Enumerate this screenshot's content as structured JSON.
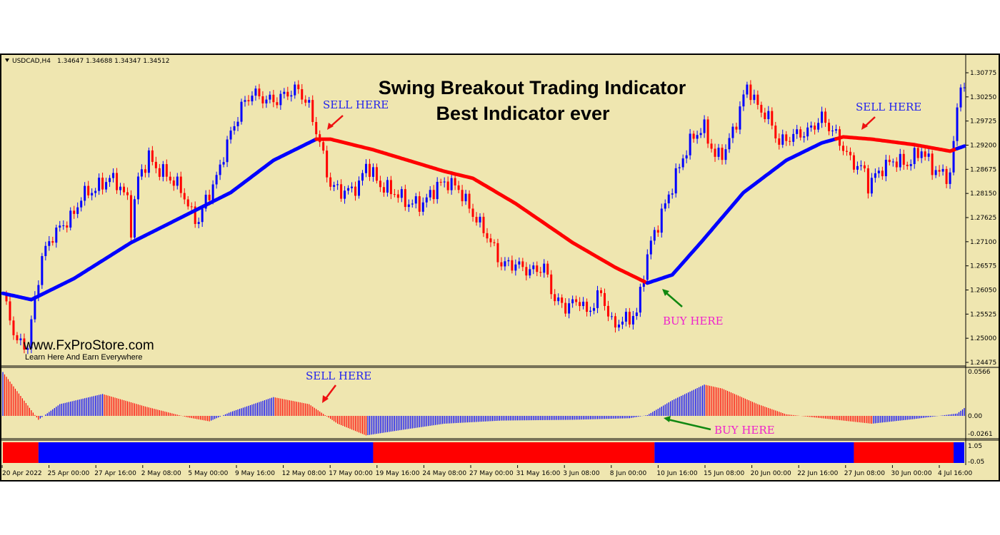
{
  "header": {
    "symbol": "USDCAD,H4",
    "ohlc": "1.34647 1.34688 1.34347 1.34512"
  },
  "title_lines": [
    "Swing Breakout Trading Indicator",
    "Best Indicator ever"
  ],
  "watermark": {
    "site": "www.FxProStore.com",
    "tagline": "Learn Here And Earn Everywhere"
  },
  "annotations": {
    "sell_1": "SELL HERE",
    "sell_2": "SELL HERE",
    "sell_3": "SELL HERE",
    "buy_1": "BUY HERE",
    "buy_2": "BUY HERE"
  },
  "colors": {
    "background": "#efe6b0",
    "bull": "#0000ff",
    "bear": "#ff0000",
    "sell_text": "#2222ee",
    "buy_text": "#ee22cc",
    "sell_arrow": "#ee1111",
    "buy_arrow": "#118811"
  },
  "chart_data": [
    {
      "type": "candlestick",
      "price_axis_ticks": [
        "1.30775",
        "1.30250",
        "1.29725",
        "1.29200",
        "1.28675",
        "1.28150",
        "1.27625",
        "1.27100",
        "1.26575",
        "1.26050",
        "1.25525",
        "1.25000",
        "1.24475"
      ],
      "ylim": [
        1.24475,
        1.30775
      ],
      "time_ticks": [
        "20 Apr 2022",
        "25 Apr 00:00",
        "27 Apr 16:00",
        "2 May 08:00",
        "5 May 00:00",
        "9 May 16:00",
        "12 May 08:00",
        "17 May 00:00",
        "19 May 16:00",
        "24 May 08:00",
        "27 May 00:00",
        "31 May 16:00",
        "3 Jun 08:00",
        "8 Jun 00:00",
        "10 Jun 16:00",
        "15 Jun 08:00",
        "20 Jun 00:00",
        "22 Jun 16:00",
        "27 Jun 08:00",
        "30 Jun 00:00",
        "4 Jul 16:00"
      ],
      "close_path": [
        [
          1,
          1.2568
        ],
        [
          4,
          1.2491
        ],
        [
          7,
          1.2483
        ],
        [
          9,
          1.2584
        ],
        [
          11,
          1.2677
        ],
        [
          14,
          1.2724
        ],
        [
          18,
          1.2755
        ],
        [
          20,
          1.277
        ],
        [
          22,
          1.2809
        ],
        [
          26,
          1.2825
        ],
        [
          30,
          1.2848
        ],
        [
          32,
          1.284
        ],
        [
          35,
          1.2801
        ],
        [
          36,
          1.2739
        ],
        [
          38,
          1.2848
        ],
        [
          41,
          1.2894
        ],
        [
          43,
          1.2871
        ],
        [
          46,
          1.2855
        ],
        [
          50,
          1.2825
        ],
        [
          53,
          1.277
        ],
        [
          55,
          1.2755
        ],
        [
          57,
          1.2801
        ],
        [
          60,
          1.2848
        ],
        [
          63,
          1.2925
        ],
        [
          67,
          1.3003
        ],
        [
          70,
          1.3034
        ],
        [
          74,
          1.3018
        ],
        [
          77,
          1.3018
        ],
        [
          80,
          1.3034
        ],
        [
          83,
          1.3041
        ],
        [
          86,
          1.3003
        ],
        [
          89,
          1.2925
        ],
        [
          92,
          1.2832
        ],
        [
          96,
          1.2817
        ],
        [
          100,
          1.2832
        ],
        [
          102,
          1.2879
        ],
        [
          106,
          1.2832
        ],
        [
          110,
          1.2817
        ],
        [
          114,
          1.2793
        ],
        [
          118,
          1.2793
        ],
        [
          122,
          1.2832
        ],
        [
          125,
          1.284
        ],
        [
          128,
          1.2825
        ],
        [
          132,
          1.277
        ],
        [
          136,
          1.2724
        ],
        [
          140,
          1.2661
        ],
        [
          144,
          1.2661
        ],
        [
          148,
          1.2646
        ],
        [
          152,
          1.2654
        ],
        [
          155,
          1.2584
        ],
        [
          158,
          1.2568
        ],
        [
          162,
          1.2584
        ],
        [
          164,
          1.2553
        ],
        [
          168,
          1.26
        ],
        [
          171,
          1.253
        ],
        [
          174,
          1.2537
        ],
        [
          178,
          1.2553
        ],
        [
          180,
          1.2646
        ],
        [
          182,
          1.2708
        ],
        [
          185,
          1.277
        ],
        [
          188,
          1.2832
        ],
        [
          191,
          1.2894
        ],
        [
          194,
          1.2941
        ],
        [
          197,
          1.2957
        ],
        [
          200,
          1.2894
        ],
        [
          203,
          1.291
        ],
        [
          206,
          1.2972
        ],
        [
          209,
          1.305
        ],
        [
          212,
          1.3003
        ],
        [
          215,
          1.298
        ],
        [
          218,
          1.2925
        ],
        [
          222,
          1.2941
        ],
        [
          226,
          1.2949
        ],
        [
          230,
          1.298
        ],
        [
          234,
          1.2941
        ],
        [
          238,
          1.2887
        ],
        [
          242,
          1.2863
        ],
        [
          243,
          1.2832
        ],
        [
          246,
          1.2863
        ],
        [
          250,
          1.2887
        ],
        [
          254,
          1.2879
        ],
        [
          258,
          1.291
        ],
        [
          261,
          1.2871
        ],
        [
          264,
          1.2855
        ],
        [
          266,
          1.2855
        ],
        [
          268,
          1.2995
        ],
        [
          269,
          1.3065
        ],
        [
          270,
          1.3034
        ]
      ],
      "ma": [
        [
          1,
          1.2596
        ],
        [
          8,
          1.2584
        ],
        [
          20,
          1.263
        ],
        [
          36,
          1.2708
        ],
        [
          54,
          1.2778
        ],
        [
          64,
          1.2817
        ],
        [
          76,
          1.2887
        ],
        [
          88,
          1.2933
        ],
        [
          92,
          1.2933
        ],
        [
          104,
          1.291
        ],
        [
          124,
          1.2863
        ],
        [
          132,
          1.2848
        ],
        [
          144,
          1.2793
        ],
        [
          160,
          1.2708
        ],
        [
          172,
          1.2654
        ],
        [
          181,
          1.262
        ],
        [
          188,
          1.2638
        ],
        [
          196,
          1.2708
        ],
        [
          208,
          1.2817
        ],
        [
          220,
          1.2887
        ],
        [
          230,
          1.2925
        ],
        [
          236,
          1.2938
        ],
        [
          244,
          1.2933
        ],
        [
          256,
          1.2921
        ],
        [
          266,
          1.2907
        ],
        [
          270,
          1.2918
        ]
      ],
      "ma_color_segments": [
        {
          "from": 0,
          "to": 88,
          "color": "blue"
        },
        {
          "from": 88,
          "to": 181,
          "color": "red"
        },
        {
          "from": 181,
          "to": 234,
          "color": "blue"
        },
        {
          "from": 234,
          "to": 268,
          "color": "red"
        },
        {
          "from": 268,
          "to": 270,
          "color": "blue"
        }
      ]
    },
    {
      "type": "histogram",
      "axis_ticks": [
        "0.0566",
        "0.00",
        "-0.0261"
      ],
      "ylim": [
        -0.0261,
        0.0566
      ],
      "values": [
        [
          1,
          0.05
        ],
        [
          10,
          -0.005
        ],
        [
          16,
          0.015
        ],
        [
          28,
          0.028
        ],
        [
          40,
          0.012
        ],
        [
          52,
          -0.002
        ],
        [
          58,
          -0.007
        ],
        [
          64,
          0.005
        ],
        [
          76,
          0.024
        ],
        [
          86,
          0.015
        ],
        [
          94,
          -0.01
        ],
        [
          102,
          -0.025
        ],
        [
          112,
          -0.018
        ],
        [
          124,
          -0.01
        ],
        [
          140,
          -0.006
        ],
        [
          160,
          -0.005
        ],
        [
          176,
          -0.003
        ],
        [
          181,
          0.001
        ],
        [
          188,
          0.02
        ],
        [
          197,
          0.04
        ],
        [
          202,
          0.035
        ],
        [
          212,
          0.015
        ],
        [
          220,
          0.002
        ],
        [
          230,
          -0.003
        ],
        [
          244,
          -0.01
        ],
        [
          256,
          -0.004
        ],
        [
          268,
          0.003
        ],
        [
          270,
          0.01
        ]
      ]
    },
    {
      "type": "signal-bar",
      "axis_ticks": [
        "1.05",
        "-0.05"
      ],
      "segments": [
        {
          "from": 0,
          "to": 10,
          "color": "red"
        },
        {
          "from": 10,
          "to": 104,
          "color": "blue"
        },
        {
          "from": 104,
          "to": 183,
          "color": "red"
        },
        {
          "from": 183,
          "to": 239,
          "color": "blue"
        },
        {
          "from": 239,
          "to": 267,
          "color": "red"
        },
        {
          "from": 267,
          "to": 270,
          "color": "blue"
        }
      ]
    }
  ]
}
